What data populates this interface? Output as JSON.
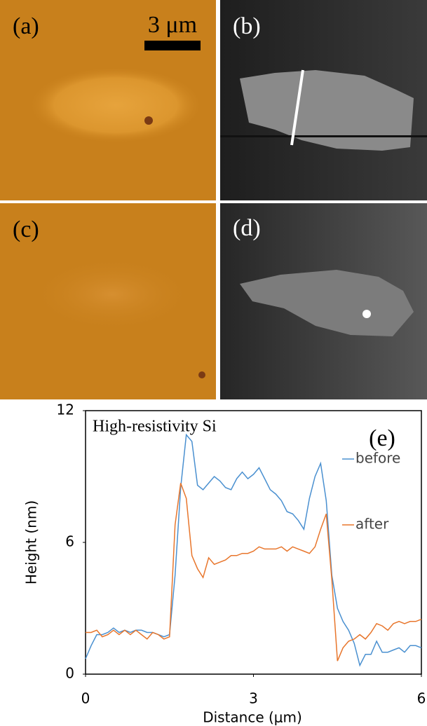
{
  "panels": [
    {
      "label": "(a)"
    },
    {
      "label": "(b)"
    },
    {
      "label": "(c)"
    },
    {
      "label": "(d)"
    }
  ],
  "scale_bar": "3 μm",
  "chart_data": {
    "type": "line",
    "title": "High-resistivity Si",
    "panel_label": "(e)",
    "x_label": "Distance (μm)",
    "y_label": "Height (nm)",
    "x": [
      0,
      0.1,
      0.2,
      0.3,
      0.4,
      0.5,
      0.6,
      0.7,
      0.8,
      0.9,
      1.0,
      1.1,
      1.2,
      1.3,
      1.4,
      1.5,
      1.6,
      1.7,
      1.8,
      1.9,
      2.0,
      2.1,
      2.2,
      2.3,
      2.4,
      2.5,
      2.6,
      2.7,
      2.8,
      2.9,
      3.0,
      3.1,
      3.2,
      3.3,
      3.4,
      3.5,
      3.6,
      3.7,
      3.8,
      3.9,
      4.0,
      4.1,
      4.2,
      4.3,
      4.4,
      4.5,
      4.6,
      4.7,
      4.8,
      4.9,
      5.0,
      5.1,
      5.2,
      5.3,
      5.4,
      5.5,
      5.6,
      5.7,
      5.8,
      5.9,
      6.0
    ],
    "series": [
      {
        "name": "before",
        "color": "#4a90d0",
        "values": [
          0.7,
          1.3,
          1.8,
          1.8,
          1.9,
          2.1,
          1.9,
          2.0,
          1.9,
          2.0,
          2.0,
          1.9,
          1.9,
          1.8,
          1.7,
          1.8,
          4.5,
          8.5,
          10.9,
          10.6,
          8.6,
          8.4,
          8.7,
          9.0,
          8.8,
          8.5,
          8.4,
          8.9,
          9.2,
          8.9,
          9.1,
          9.4,
          8.9,
          8.4,
          8.2,
          7.9,
          7.4,
          7.3,
          7.0,
          6.6,
          8.0,
          9.0,
          9.6,
          7.9,
          4.5,
          3.0,
          2.4,
          2.0,
          1.4,
          0.4,
          0.9,
          0.9,
          1.5,
          1.0,
          1.0,
          1.1,
          1.2,
          1.0,
          1.3,
          1.3,
          1.2
        ]
      },
      {
        "name": "after",
        "color": "#e8762c",
        "values": [
          1.9,
          1.9,
          2.0,
          1.7,
          1.8,
          2.0,
          1.8,
          2.0,
          1.8,
          2.0,
          1.8,
          1.6,
          1.9,
          1.8,
          1.6,
          1.7,
          6.8,
          8.7,
          8.0,
          5.4,
          4.8,
          4.4,
          5.3,
          5.0,
          5.1,
          5.2,
          5.4,
          5.4,
          5.5,
          5.5,
          5.6,
          5.8,
          5.7,
          5.7,
          5.7,
          5.8,
          5.6,
          5.8,
          5.7,
          5.6,
          5.5,
          5.8,
          6.6,
          7.3,
          4.3,
          0.6,
          1.2,
          1.5,
          1.6,
          1.8,
          1.6,
          1.9,
          2.3,
          2.2,
          2.0,
          2.3,
          2.4,
          2.3,
          2.4,
          2.4,
          2.5
        ]
      }
    ],
    "xlim": [
      0,
      6
    ],
    "ylim": [
      0,
      12
    ],
    "xticks": [
      0,
      3,
      6
    ],
    "yticks": [
      0,
      6,
      12
    ],
    "grid": false
  }
}
